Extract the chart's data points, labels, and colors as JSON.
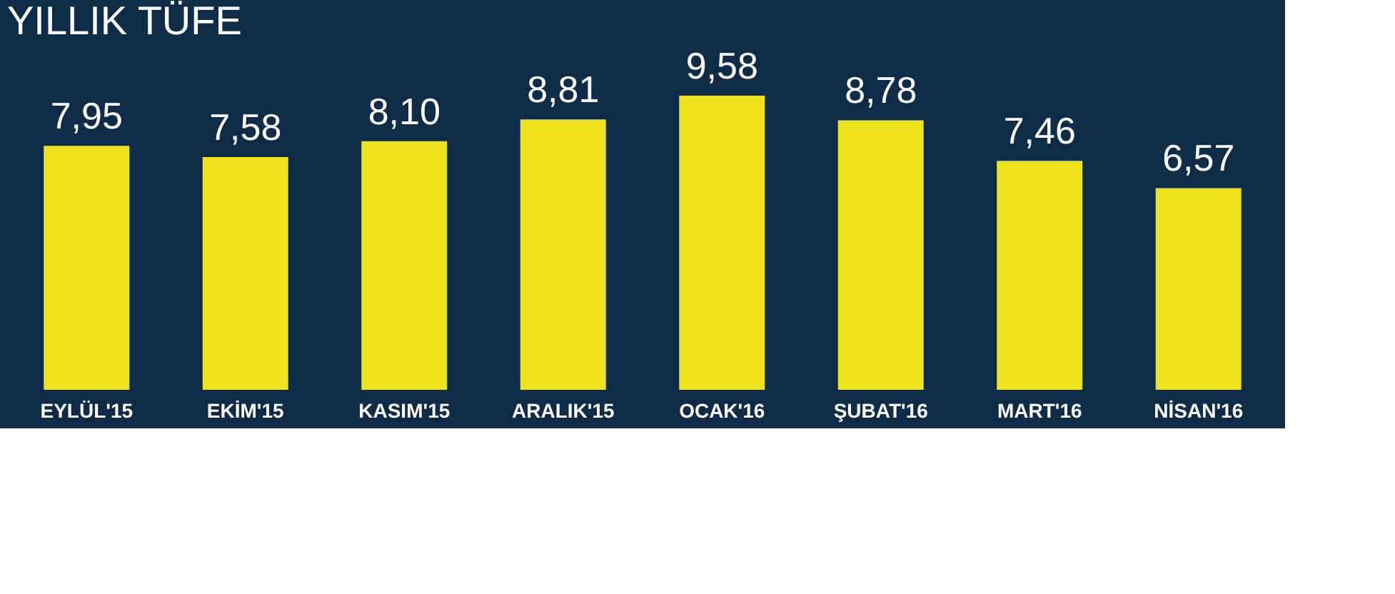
{
  "chart_data": {
    "type": "bar",
    "title": "YILLIK TÜFE",
    "categories": [
      "EYLÜL'15",
      "EKİM'15",
      "KASIM'15",
      "ARALIK'15",
      "OCAK'16",
      "ŞUBAT'16",
      "MART'16",
      "NİSAN'16"
    ],
    "values": [
      7.95,
      7.58,
      8.1,
      8.81,
      9.58,
      8.78,
      7.46,
      6.57
    ],
    "value_labels": [
      "7,95",
      "7,58",
      "8,10",
      "8,81",
      "9,58",
      "8,78",
      "7,46",
      "6,57"
    ],
    "color": "#ede21c",
    "tick_labels": "x",
    "grid": false
  }
}
